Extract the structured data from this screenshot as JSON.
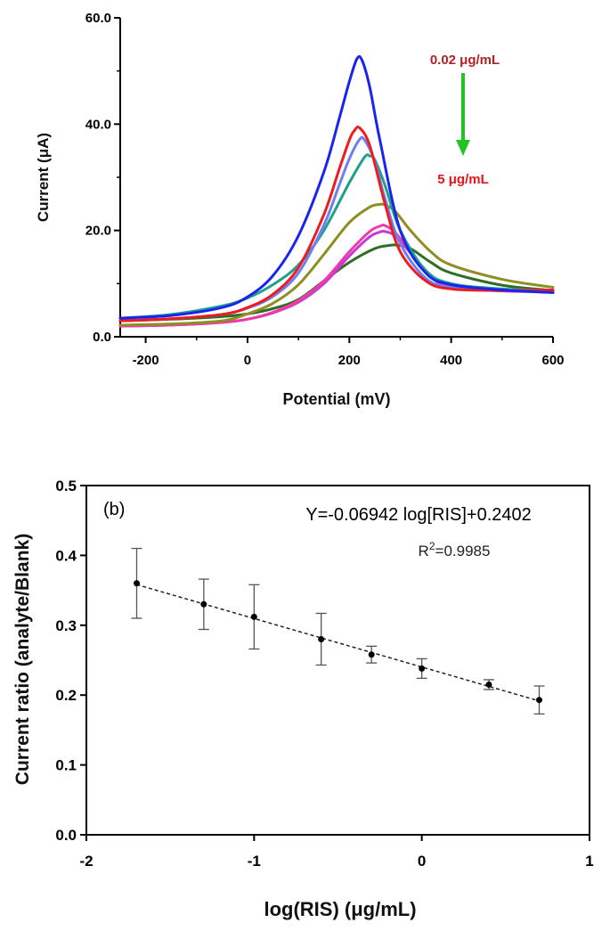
{
  "chart_data": [
    {
      "panel": "a",
      "type": "line",
      "title": "",
      "xlabel": "Potential (mV)",
      "ylabel": "Current (μA)",
      "xlim": [
        -250,
        600
      ],
      "ylim": [
        0,
        60
      ],
      "xticks": [
        "-200",
        "0",
        "200",
        "400",
        "600"
      ],
      "yticks": [
        "0.0",
        "20.0",
        "40.0",
        "60.0"
      ],
      "annotations": {
        "top_label": "0.02 μg/mL",
        "top_color": "#b22222",
        "bottom_label": "5 μg/mL",
        "bottom_color": "#e8141c",
        "arrow_color": "#22c322"
      },
      "series": [
        {
          "name": "0.02 μg/mL",
          "color": "#1a24f0",
          "x": [
            -250,
            -150,
            -50,
            0,
            50,
            100,
            150,
            180,
            200,
            215,
            225,
            240,
            260,
            300,
            350,
            400,
            500,
            600
          ],
          "y": [
            3.5,
            4.0,
            5.5,
            7.5,
            11.5,
            19,
            31,
            41,
            48,
            52.3,
            52,
            47,
            37,
            20,
            12,
            9.8,
            8.8,
            8.3
          ]
        },
        {
          "name": "series-2",
          "color": "#ee1c1c",
          "x": [
            -250,
            -150,
            -50,
            0,
            50,
            100,
            150,
            180,
            200,
            210,
            220,
            240,
            270,
            300,
            350,
            400,
            500,
            600
          ],
          "y": [
            3.0,
            3.4,
            4.2,
            5.5,
            8,
            13,
            23,
            31.5,
            37,
            38.8,
            39.3,
            36,
            25,
            16,
            10.5,
            9,
            8.7,
            8.8
          ]
        },
        {
          "name": "series-3",
          "color": "#6f7ff0",
          "x": [
            -250,
            -150,
            -50,
            0,
            50,
            100,
            150,
            180,
            200,
            220,
            230,
            250,
            270,
            300,
            350,
            400,
            500,
            600
          ],
          "y": [
            3.0,
            3.4,
            4.2,
            5.4,
            7.6,
            12,
            21,
            28.5,
            33.5,
            37.1,
            37,
            33,
            26,
            17.5,
            11,
            9.3,
            8.8,
            8.8
          ]
        },
        {
          "name": "series-4",
          "color": "#20a08c",
          "x": [
            -250,
            -150,
            -50,
            0,
            50,
            100,
            150,
            200,
            230,
            240,
            250,
            270,
            300,
            350,
            400,
            500,
            600
          ],
          "y": [
            3.5,
            4.2,
            5.8,
            7.3,
            9.8,
            13.5,
            20,
            29,
            33.8,
            34,
            33.3,
            28.5,
            20,
            12.5,
            10,
            9,
            8.7
          ]
        },
        {
          "name": "series-5",
          "color": "#8e8e22",
          "x": [
            -250,
            -150,
            -50,
            0,
            50,
            100,
            150,
            200,
            240,
            260,
            270,
            290,
            320,
            360,
            400,
            500,
            600
          ],
          "y": [
            2.2,
            2.4,
            3.0,
            4.3,
            6.3,
            9.8,
            15.5,
            21.5,
            24.4,
            24.9,
            24.8,
            23.6,
            20,
            16,
            13.5,
            10.8,
            9.3
          ]
        },
        {
          "name": "series-6",
          "color": "#ef3aa8",
          "x": [
            -250,
            -150,
            -50,
            0,
            50,
            100,
            150,
            200,
            240,
            260,
            270,
            290,
            320,
            360,
            400,
            500,
            600
          ],
          "y": [
            2.0,
            2.2,
            2.7,
            3.3,
            4.6,
            6.8,
            10.5,
            16,
            19.8,
            20.8,
            20.9,
            19.6,
            16,
            11.3,
            9.4,
            8.6,
            8.5
          ]
        },
        {
          "name": "series-7",
          "color": "#c838d8",
          "x": [
            -250,
            -150,
            -50,
            0,
            50,
            100,
            150,
            200,
            240,
            260,
            270,
            290,
            320,
            360,
            400,
            500,
            600
          ],
          "y": [
            2.0,
            2.2,
            2.7,
            3.3,
            4.5,
            6.5,
            10,
            15.2,
            18.8,
            19.7,
            19.8,
            19,
            15.8,
            11.5,
            9.6,
            8.7,
            8.5
          ]
        },
        {
          "name": "5 μg/mL",
          "color": "#2d6e26",
          "x": [
            -250,
            -150,
            -50,
            0,
            50,
            100,
            150,
            200,
            250,
            280,
            295,
            320,
            360,
            400,
            500,
            600
          ],
          "y": [
            3.0,
            3.3,
            3.8,
            4.3,
            5.3,
            7,
            10.5,
            14,
            16.6,
            17.2,
            17.2,
            16.6,
            14,
            12,
            9.7,
            8.7
          ]
        }
      ]
    },
    {
      "panel": "b",
      "type": "scatter",
      "panel_label": "(b)",
      "title": "",
      "xlabel": "log(RIS) (μg/mL)",
      "ylabel": "Current ratio (analyte/Blank)",
      "xlim": [
        -2,
        1
      ],
      "ylim": [
        0,
        0.5
      ],
      "xticks": [
        "-2",
        "-1",
        "0",
        "1"
      ],
      "yticks": [
        "0.0",
        "0.1",
        "0.2",
        "0.3",
        "0.4",
        "0.5"
      ],
      "equation": "Y=-0.06942 log[RIS]+0.2402",
      "r2_prefix": "R",
      "r2_sup": "2",
      "r2_value": "=0.9985",
      "fit": {
        "slope": -0.06942,
        "intercept": 0.2402
      },
      "points": [
        {
          "x": -1.7,
          "y": 0.36,
          "err": 0.05
        },
        {
          "x": -1.3,
          "y": 0.33,
          "err": 0.036
        },
        {
          "x": -1.0,
          "y": 0.312,
          "err": 0.046
        },
        {
          "x": -0.6,
          "y": 0.28,
          "err": 0.037
        },
        {
          "x": -0.3,
          "y": 0.258,
          "err": 0.012
        },
        {
          "x": 0.0,
          "y": 0.238,
          "err": 0.014
        },
        {
          "x": 0.4,
          "y": 0.215,
          "err": 0.007
        },
        {
          "x": 0.7,
          "y": 0.193,
          "err": 0.02
        }
      ]
    }
  ]
}
